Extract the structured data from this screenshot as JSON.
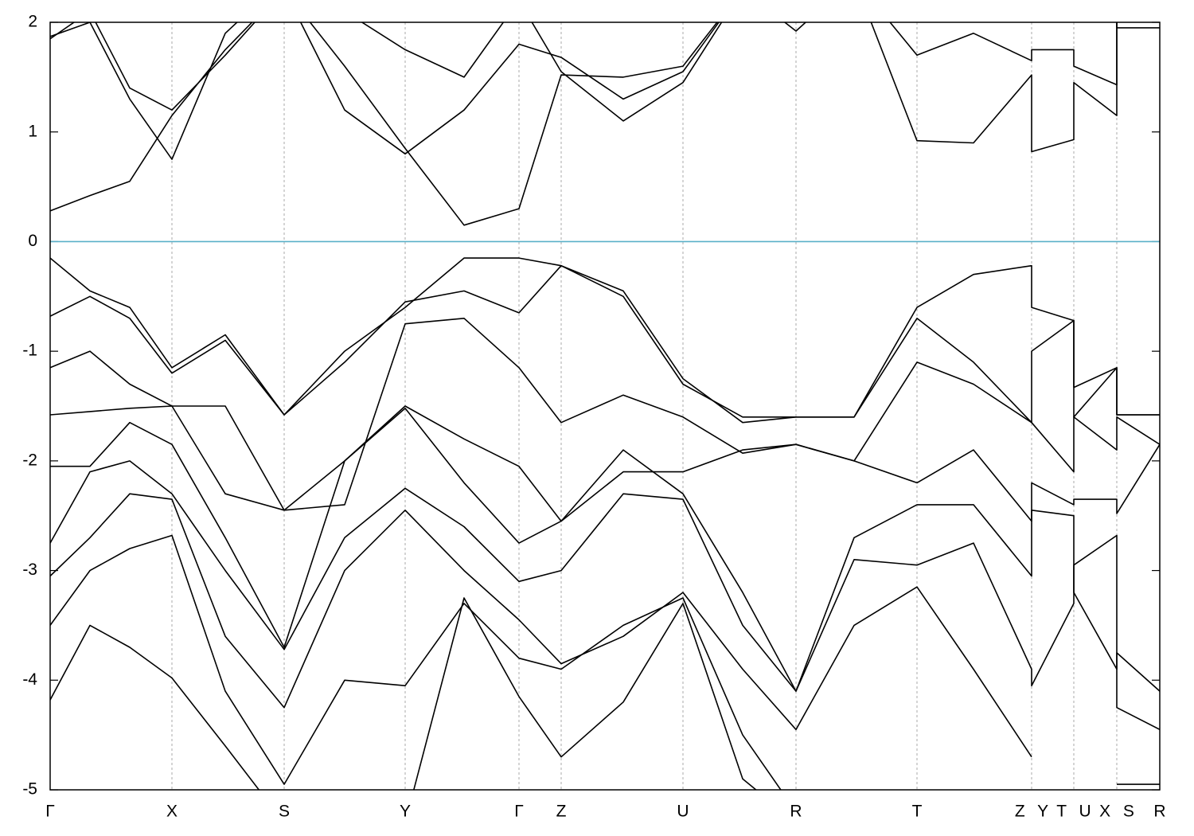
{
  "chart_data": {
    "type": "line",
    "x": [
      0,
      0.5,
      1.0,
      1.53,
      2.2,
      2.94,
      3.7,
      4.46,
      5.2,
      5.89,
      6.42,
      7.2,
      7.95,
      8.7,
      9.37,
      10.1,
      10.89,
      11.6,
      12.33,
      12.33,
      12.86,
      12.86,
      13.4,
      13.4,
      13.94
    ],
    "xlim": [
      0,
      13.94
    ],
    "xticks": [
      {
        "value": 0,
        "label": "Γ"
      },
      {
        "value": 1.53,
        "label": "X"
      },
      {
        "value": 2.94,
        "label": "S"
      },
      {
        "value": 4.46,
        "label": "Y"
      },
      {
        "value": 5.89,
        "label": "Γ"
      },
      {
        "value": 6.42,
        "label": "Z"
      },
      {
        "value": 7.95,
        "label": "U"
      },
      {
        "value": 9.37,
        "label": "R"
      },
      {
        "value": 10.89,
        "label": "T"
      },
      {
        "value": 12.33,
        "label": "Z Y"
      },
      {
        "value": 12.86,
        "label": "T U"
      },
      {
        "value": 13.4,
        "label": "X S"
      },
      {
        "value": 13.94,
        "label": "R"
      }
    ],
    "ylim": [
      -5,
      2
    ],
    "yticks": [
      -5,
      -4,
      -3,
      -2,
      -1,
      0,
      1,
      2
    ],
    "grid": true,
    "line_color": "#000000",
    "reference_line": {
      "value": 0,
      "color": "#5ab0c8"
    },
    "series": [
      {
        "values": [
          0.28,
          0.42,
          0.55,
          1.15,
          1.75,
          2.3,
          1.6,
          0.85,
          0.15,
          0.3,
          1.52,
          1.5,
          1.6,
          2.3,
          2.5,
          2.4,
          0.92,
          0.9,
          1.52,
          0.82,
          0.93,
          1.45,
          1.15,
          2.3,
          2.3
        ]
      },
      {
        "values": [
          1.85,
          2.1,
          1.4,
          1.2,
          1.7,
          2.3,
          1.2,
          0.8,
          1.2,
          1.8,
          1.68,
          1.3,
          1.55,
          2.3,
          2.5,
          2.4,
          1.7,
          1.9,
          1.65,
          1.75,
          1.75,
          1.6,
          1.43,
          2.3,
          2.3
        ]
      },
      {
        "values": [
          1.87,
          2.0,
          1.3,
          0.75,
          1.9,
          2.4,
          2.1,
          1.75,
          1.5,
          2.2,
          1.55,
          1.1,
          1.45,
          2.3,
          1.92,
          2.4,
          2.3,
          2.4,
          2.3,
          2.3,
          2.3,
          2.3,
          2.3,
          1.95,
          1.95
        ]
      },
      {
        "values": [
          -0.15,
          -0.45,
          -0.6,
          -1.15,
          -0.85,
          -1.58,
          -1.0,
          -0.6,
          -0.15,
          -0.15,
          -0.22,
          -0.5,
          -1.3,
          -1.6,
          -1.6,
          -1.6,
          -0.6,
          -0.3,
          -0.22,
          -0.6,
          -0.72,
          -1.33,
          -1.15,
          -1.58,
          -1.58
        ]
      },
      {
        "values": [
          -0.68,
          -0.5,
          -0.7,
          -1.2,
          -0.9,
          -1.58,
          -1.1,
          -0.55,
          -0.45,
          -0.65,
          -0.22,
          -0.45,
          -1.25,
          -1.65,
          -1.6,
          -1.6,
          -0.7,
          -1.1,
          -1.65,
          -1.0,
          -0.72,
          -1.6,
          -1.15,
          -1.58,
          -1.58
        ]
      },
      {
        "values": [
          -1.15,
          -1.0,
          -1.3,
          -1.5,
          -1.5,
          -2.45,
          -2.4,
          -0.75,
          -0.7,
          -1.15,
          -1.65,
          -1.4,
          -1.6,
          -1.93,
          -1.85,
          -2.0,
          -1.1,
          -1.3,
          -1.65,
          -1.65,
          -2.1,
          -1.6,
          -1.9,
          -1.6,
          -1.85
        ]
      },
      {
        "values": [
          -1.58,
          -1.55,
          -1.52,
          -1.5,
          -2.3,
          -2.45,
          -2.0,
          -1.5,
          -1.8,
          -2.05,
          -2.55,
          -2.1,
          -2.1,
          -1.9,
          -1.85,
          -2.0,
          -2.2,
          -1.9,
          -2.55,
          -2.2,
          -2.4,
          -2.35,
          -2.35,
          -2.48,
          -1.85
        ]
      },
      {
        "values": [
          -2.05,
          -2.05,
          -1.65,
          -1.85,
          -2.7,
          -3.7,
          -2.0,
          -1.52,
          -2.2,
          -2.75,
          -2.55,
          -1.9,
          -2.3,
          -3.2,
          -4.1,
          -2.7,
          -2.4,
          -2.4,
          -3.05,
          -2.45,
          -2.5,
          -3.2,
          -3.9,
          -3.75,
          -4.1
        ]
      },
      {
        "values": [
          -2.75,
          -2.1,
          -2.0,
          -2.3,
          -3.0,
          -3.72,
          -2.7,
          -2.25,
          -2.6,
          -3.1,
          -3.0,
          -2.3,
          -2.35,
          -3.5,
          -4.1,
          -2.9,
          -2.95,
          -2.75,
          -3.9,
          -4.05,
          -3.3,
          -2.95,
          -2.68,
          -4.25,
          -4.45
        ]
      },
      {
        "values": [
          -3.05,
          -2.7,
          -2.3,
          -2.35,
          -3.6,
          -4.25,
          -3.0,
          -2.45,
          -3.0,
          -3.45,
          -3.85,
          -3.6,
          -3.2,
          -3.9,
          -4.45,
          -3.5,
          -3.15,
          -3.9,
          -4.7,
          null,
          null,
          null,
          null,
          -4.95,
          -4.95
        ]
      },
      {
        "values": [
          -3.5,
          -3.0,
          -2.8,
          -2.68,
          -4.1,
          -4.95,
          -4.0,
          -4.05,
          -3.3,
          -3.8,
          -3.9,
          -3.5,
          -3.25,
          -4.5,
          -5.2,
          -5.2,
          null,
          null,
          null,
          null,
          null,
          null,
          null,
          null,
          null
        ]
      },
      {
        "values": [
          -4.18,
          -3.5,
          -3.7,
          -3.98,
          -4.6,
          -5.3,
          -5.3,
          -5.3,
          -3.25,
          -4.15,
          -4.7,
          -4.2,
          -3.3,
          -4.9,
          -5.3,
          -5.3,
          null,
          null,
          null,
          null,
          null,
          null,
          null,
          null,
          null
        ]
      }
    ]
  }
}
